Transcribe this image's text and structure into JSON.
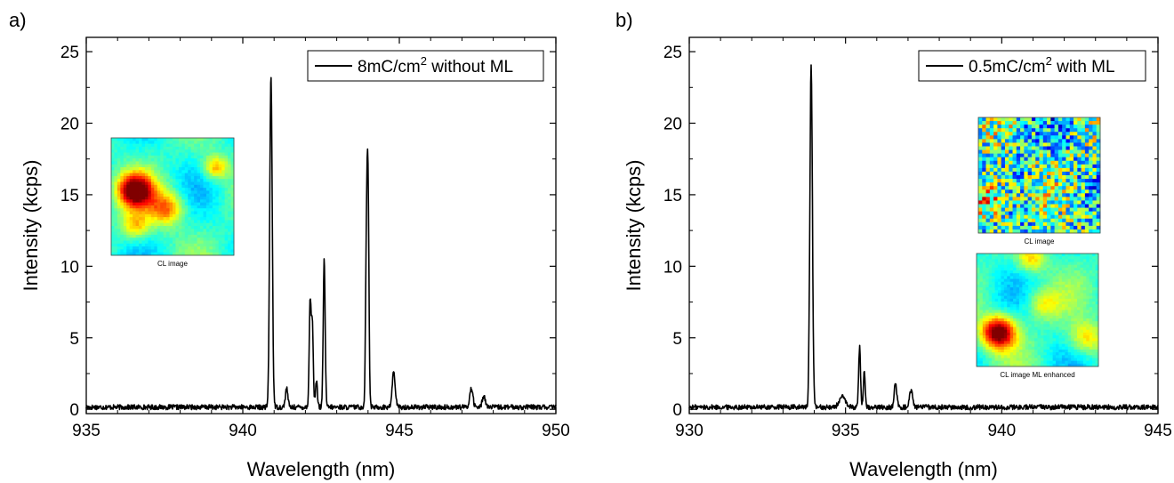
{
  "chart_data": [
    {
      "panel_label": "a)",
      "type": "line",
      "xlabel": "Wavelength (nm)",
      "ylabel": "Intensity (kcps)",
      "xlim": [
        935,
        950
      ],
      "ylim": [
        -0.3,
        26
      ],
      "xticks": [
        935,
        940,
        945,
        950
      ],
      "yticks": [
        0,
        5,
        10,
        15,
        20,
        25
      ],
      "legend": {
        "position": "top-right",
        "text": "8mC/cm",
        "sup": "2",
        "suffix": " without ML"
      },
      "series": [
        {
          "name": "8mC/cm2 without ML",
          "color": "#000000"
        }
      ],
      "baseline": 0.15,
      "peaks": [
        {
          "x": 940.9,
          "y": 23.3,
          "w": 0.04
        },
        {
          "x": 941.4,
          "y": 1.3,
          "w": 0.04
        },
        {
          "x": 942.15,
          "y": 7.2,
          "w": 0.03
        },
        {
          "x": 942.22,
          "y": 5.8,
          "w": 0.03
        },
        {
          "x": 942.35,
          "y": 1.9,
          "w": 0.03
        },
        {
          "x": 942.6,
          "y": 10.4,
          "w": 0.03
        },
        {
          "x": 943.95,
          "y": 10.5,
          "w": 0.03
        },
        {
          "x": 944.0,
          "y": 14.5,
          "w": 0.03
        },
        {
          "x": 944.8,
          "y": 1.7,
          "w": 0.04
        },
        {
          "x": 944.85,
          "y": 1.2,
          "w": 0.04
        },
        {
          "x": 947.3,
          "y": 1.3,
          "w": 0.05
        },
        {
          "x": 947.7,
          "y": 0.8,
          "w": 0.05
        }
      ],
      "insets": [
        {
          "caption": "CL image",
          "colormap": "jet",
          "hotspots": [
            [
              0.2,
              0.45,
              1.0,
              0.1
            ],
            [
              0.45,
              0.6,
              0.7,
              0.1
            ],
            [
              0.2,
              0.75,
              0.6,
              0.08
            ],
            [
              0.85,
              0.25,
              0.65,
              0.07
            ]
          ]
        }
      ]
    },
    {
      "panel_label": "b)",
      "type": "line",
      "xlabel": "Wavelength (nm)",
      "ylabel": "Intensity (kcps)",
      "xlim": [
        930,
        945
      ],
      "ylim": [
        -0.3,
        26
      ],
      "xticks": [
        930,
        935,
        940,
        945
      ],
      "yticks": [
        0,
        5,
        10,
        15,
        20,
        25
      ],
      "legend": {
        "position": "top-right",
        "text": "0.5mC/cm",
        "sup": "2",
        "suffix": " with ML"
      },
      "series": [
        {
          "name": "0.5mC/cm2 with ML",
          "color": "#000000"
        }
      ],
      "baseline": 0.15,
      "peaks": [
        {
          "x": 933.9,
          "y": 24.0,
          "w": 0.04
        },
        {
          "x": 934.9,
          "y": 0.7,
          "w": 0.1
        },
        {
          "x": 935.45,
          "y": 4.2,
          "w": 0.03
        },
        {
          "x": 935.6,
          "y": 2.4,
          "w": 0.03
        },
        {
          "x": 936.6,
          "y": 1.7,
          "w": 0.04
        },
        {
          "x": 937.1,
          "y": 1.2,
          "w": 0.05
        }
      ],
      "insets": [
        {
          "caption": "CL image",
          "colormap": "jet",
          "noisy": true,
          "hotspots": [
            [
              0.08,
              0.7,
              0.7,
              0.12
            ]
          ]
        },
        {
          "caption": "CL image ML enhanced",
          "colormap": "jet",
          "hotspots": [
            [
              0.18,
              0.7,
              1.0,
              0.1
            ],
            [
              0.45,
              0.05,
              0.6,
              0.08
            ],
            [
              0.55,
              0.45,
              0.55,
              0.1
            ],
            [
              0.9,
              0.75,
              0.6,
              0.1
            ]
          ]
        }
      ]
    }
  ]
}
